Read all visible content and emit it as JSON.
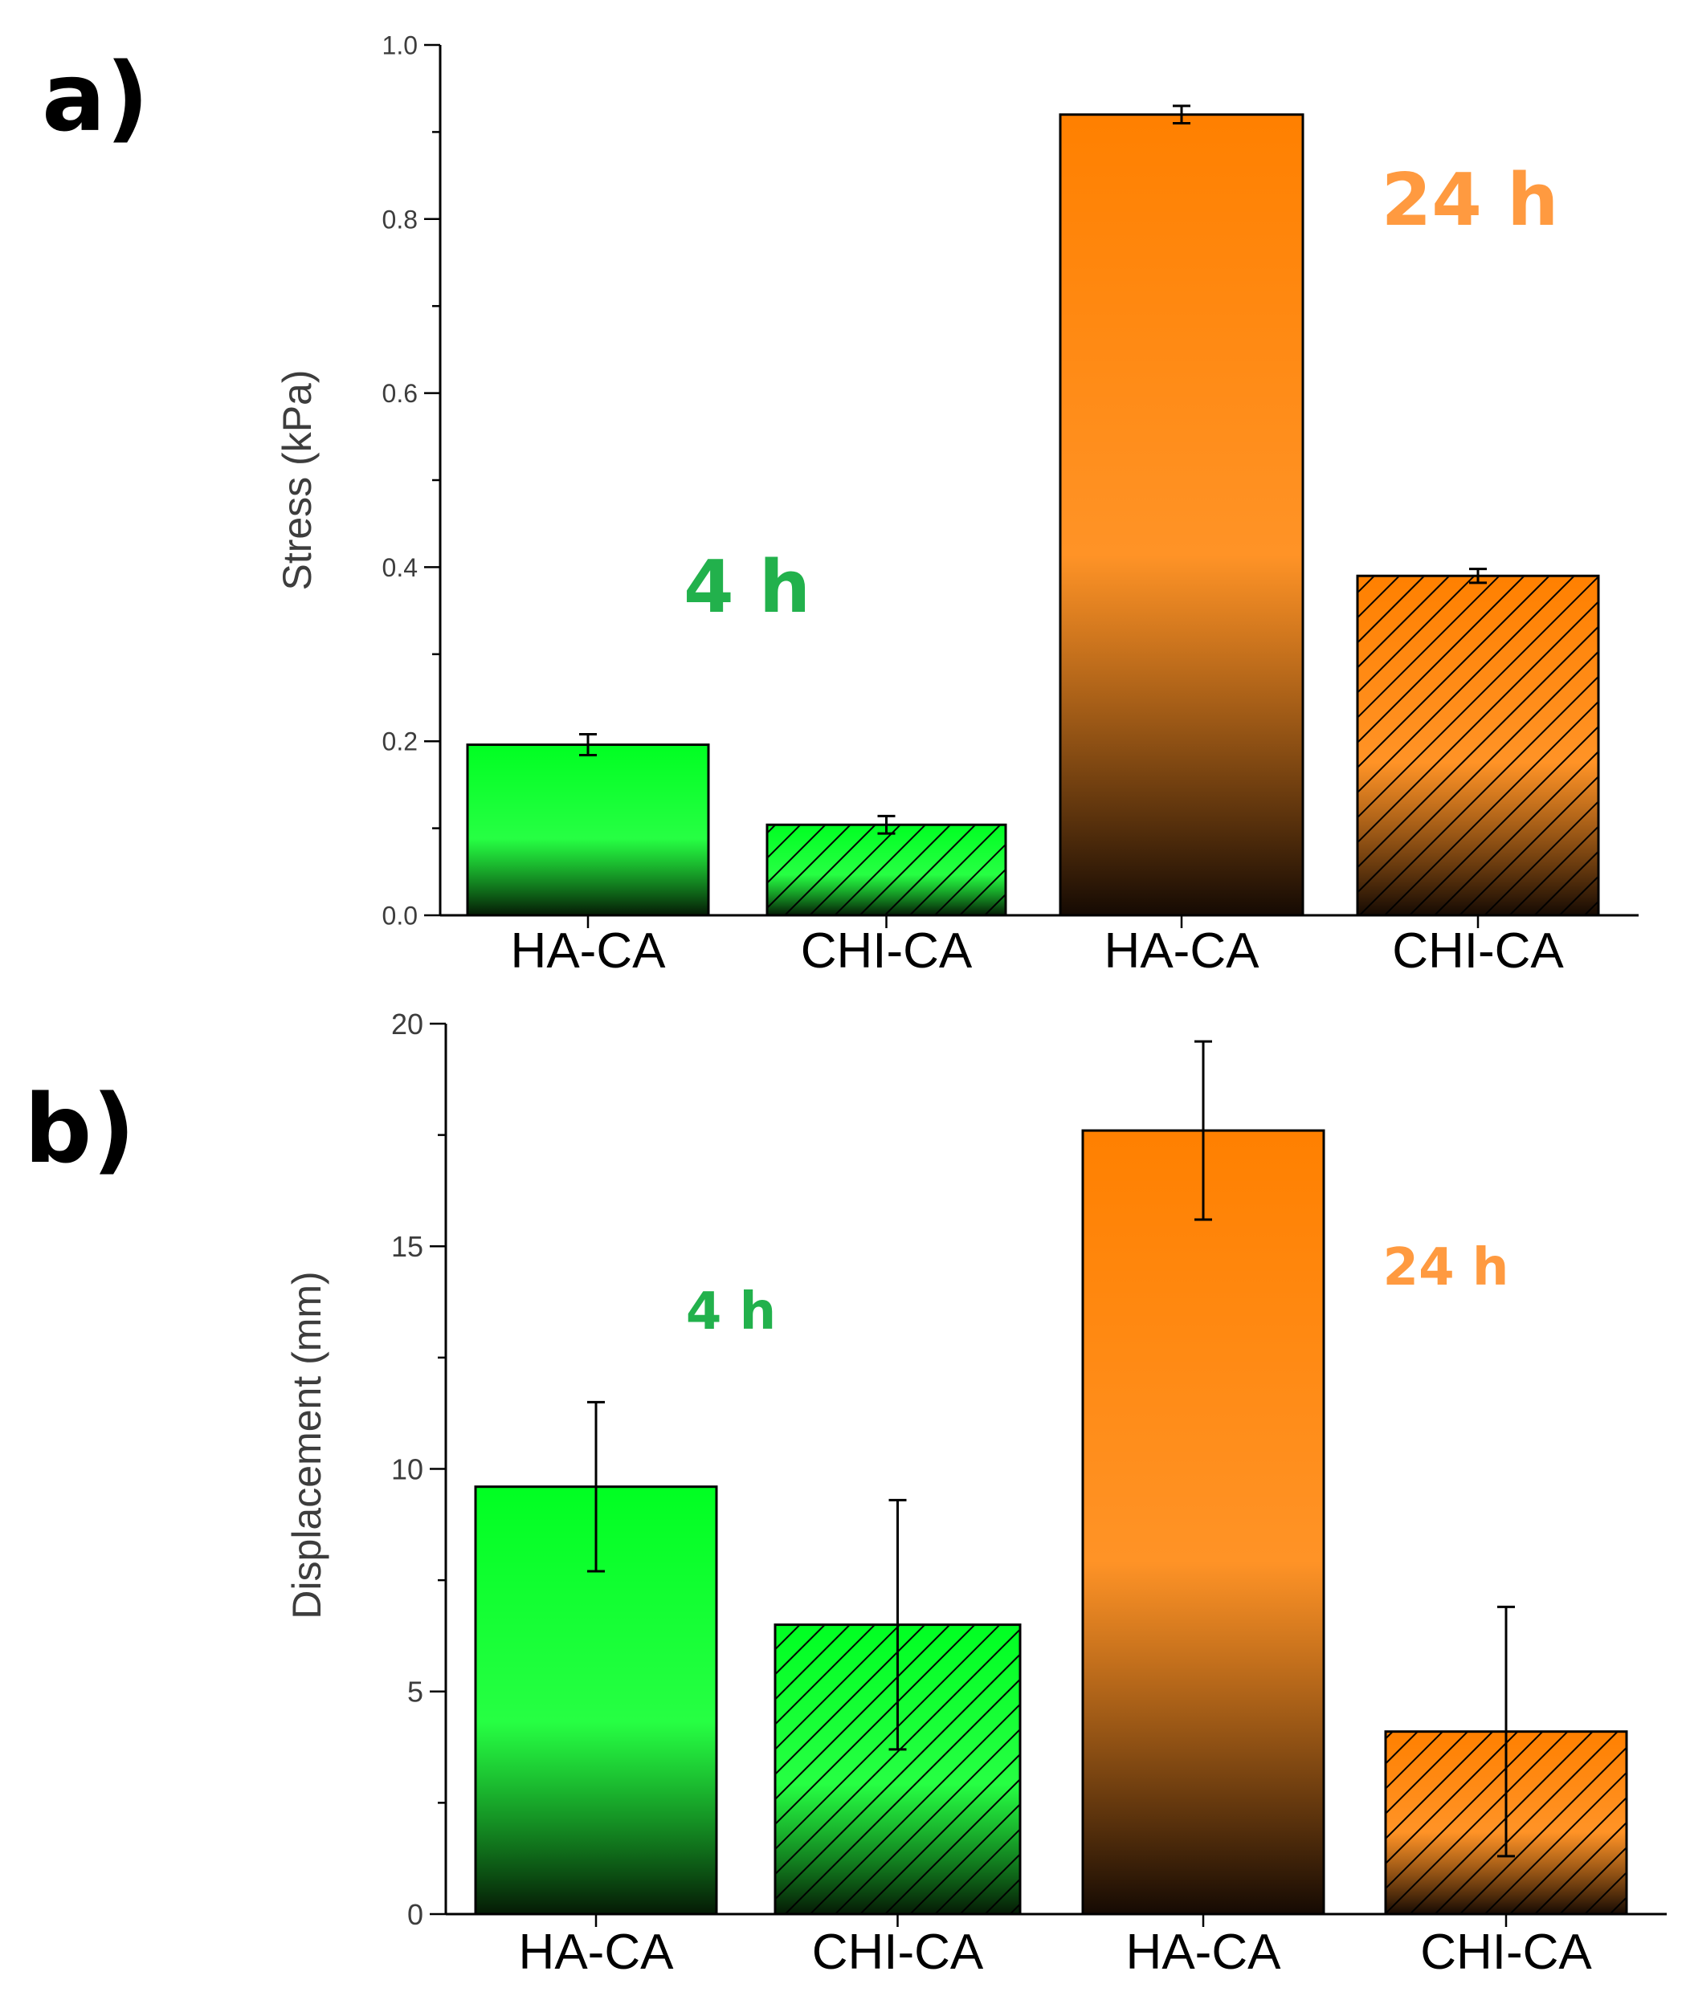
{
  "chart_data": [
    {
      "type": "bar",
      "panel_label": "a)",
      "categories": [
        "HA-CA",
        "CHI-CA",
        "HA-CA",
        "CHI-CA"
      ],
      "values": [
        0.196,
        0.104,
        0.92,
        0.39
      ],
      "errors": [
        0.012,
        0.01,
        0.01,
        0.008
      ],
      "hatched": [
        false,
        true,
        false,
        true
      ],
      "group_of_bar": [
        0,
        0,
        1,
        1
      ],
      "groups": [
        {
          "label": "4 h",
          "color": "#22b14c",
          "bar_top_color": "#00ff22",
          "bar_bottom_color": "#051a05"
        },
        {
          "label": "24 h",
          "color": "#ff9a40",
          "bar_top_color": "#ff8000",
          "bar_bottom_color": "#150a03"
        }
      ],
      "ylabel": "Stress (kPa)",
      "ylim": [
        0,
        1.0
      ],
      "yticks": [
        0.0,
        0.2,
        0.4,
        0.6,
        0.8,
        1.0
      ],
      "ytick_labels": [
        "0.0",
        "0.2",
        "0.4",
        "0.6",
        "0.8",
        "1.0"
      ],
      "minor_tick_step": 0.1,
      "grid": false,
      "annotations": [
        {
          "text": "4 h",
          "group": 0,
          "size": "large"
        },
        {
          "text": "24 h",
          "group": 1,
          "size": "large"
        }
      ]
    },
    {
      "type": "bar",
      "panel_label": "b)",
      "categories": [
        "HA-CA",
        "CHI-CA",
        "HA-CA",
        "CHI-CA"
      ],
      "values": [
        9.6,
        6.5,
        17.6,
        4.1
      ],
      "errors": [
        1.9,
        2.8,
        2.0,
        2.8
      ],
      "hatched": [
        false,
        true,
        false,
        true
      ],
      "group_of_bar": [
        0,
        0,
        1,
        1
      ],
      "groups": [
        {
          "label": "4 h",
          "color": "#22b14c",
          "bar_top_color": "#00ff22",
          "bar_bottom_color": "#051a05"
        },
        {
          "label": "24 h",
          "color": "#ff9a40",
          "bar_top_color": "#ff8000",
          "bar_bottom_color": "#150a03"
        }
      ],
      "ylabel": "Displacement (mm)",
      "ylim": [
        0,
        20
      ],
      "yticks": [
        0,
        5,
        10,
        15,
        20
      ],
      "ytick_labels": [
        "0",
        "5",
        "10",
        "15",
        "20"
      ],
      "minor_tick_step": 2.5,
      "grid": false,
      "annotations": [
        {
          "text": "4 h",
          "group": 0,
          "size": "small"
        },
        {
          "text": "24 h",
          "group": 1,
          "size": "small"
        }
      ]
    }
  ]
}
